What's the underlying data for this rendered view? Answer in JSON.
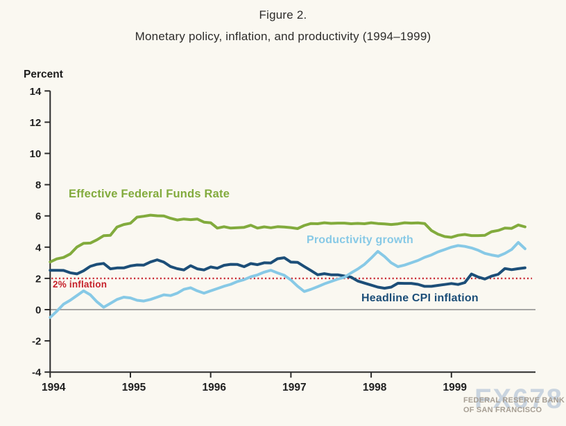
{
  "figure": {
    "title": "Figure 2.",
    "subtitle": "Monetary policy, inflation, and productivity (1994–1999)"
  },
  "chart_data": {
    "type": "line",
    "title": "Monetary policy, inflation, and productivity (1994–1999)",
    "ylabel": "Percent",
    "ylim": [
      -4,
      14
    ],
    "yticks": [
      14,
      12,
      10,
      8,
      6,
      4,
      2,
      0,
      -2,
      -4
    ],
    "xticks": [
      "1994",
      "1995",
      "1996",
      "1997",
      "1998",
      "1999"
    ],
    "x_frequency": "monthly",
    "x_start": "1994-01",
    "x_end": "1999-12",
    "grid": false,
    "legend_position": "inline-labels",
    "axis_color": "#2b2b2b",
    "zero_line_color": "#8a8a8a",
    "reference_line": {
      "value": 2,
      "label": "2% inflation",
      "color": "#c6212b",
      "style": "dotted"
    },
    "series": [
      {
        "name": "Effective Federal Funds Rate",
        "color": "#82ab3d",
        "values": [
          3.05,
          3.25,
          3.34,
          3.56,
          4.01,
          4.25,
          4.26,
          4.47,
          4.73,
          4.76,
          5.29,
          5.45,
          5.53,
          5.92,
          5.98,
          6.05,
          6.01,
          6.0,
          5.85,
          5.74,
          5.8,
          5.76,
          5.8,
          5.6,
          5.56,
          5.22,
          5.31,
          5.22,
          5.24,
          5.27,
          5.4,
          5.22,
          5.3,
          5.24,
          5.31,
          5.29,
          5.25,
          5.19,
          5.39,
          5.51,
          5.5,
          5.56,
          5.52,
          5.54,
          5.54,
          5.5,
          5.52,
          5.5,
          5.56,
          5.51,
          5.49,
          5.45,
          5.49,
          5.56,
          5.54,
          5.55,
          5.51,
          5.07,
          4.83,
          4.68,
          4.63,
          4.76,
          4.81,
          4.74,
          4.74,
          4.76,
          4.99,
          5.07,
          5.22,
          5.2,
          5.42,
          5.3
        ]
      },
      {
        "name": "Headline CPI inflation",
        "color": "#1c4e78",
        "values": [
          2.52,
          2.52,
          2.51,
          2.36,
          2.29,
          2.49,
          2.77,
          2.9,
          2.96,
          2.61,
          2.67,
          2.67,
          2.8,
          2.86,
          2.85,
          3.05,
          3.19,
          3.04,
          2.76,
          2.62,
          2.54,
          2.81,
          2.61,
          2.54,
          2.73,
          2.65,
          2.84,
          2.9,
          2.89,
          2.75,
          2.95,
          2.88,
          3.0,
          2.99,
          3.26,
          3.32,
          3.04,
          3.03,
          2.76,
          2.5,
          2.23,
          2.3,
          2.23,
          2.23,
          2.15,
          2.08,
          1.83,
          1.7,
          1.57,
          1.44,
          1.37,
          1.44,
          1.69,
          1.68,
          1.68,
          1.62,
          1.49,
          1.49,
          1.55,
          1.61,
          1.67,
          1.61,
          1.73,
          2.28,
          2.09,
          1.96,
          2.14,
          2.26,
          2.63,
          2.56,
          2.62,
          2.68
        ]
      },
      {
        "name": "Productivity growth",
        "color": "#87c9e6",
        "values": [
          -0.5,
          -0.1,
          0.35,
          0.6,
          0.9,
          1.2,
          0.95,
          0.5,
          0.15,
          0.4,
          0.65,
          0.8,
          0.75,
          0.6,
          0.55,
          0.65,
          0.8,
          0.95,
          0.9,
          1.05,
          1.3,
          1.4,
          1.2,
          1.05,
          1.2,
          1.35,
          1.5,
          1.62,
          1.8,
          1.92,
          2.1,
          2.22,
          2.4,
          2.52,
          2.35,
          2.2,
          1.9,
          1.5,
          1.16,
          1.3,
          1.47,
          1.65,
          1.8,
          1.95,
          2.07,
          2.35,
          2.6,
          2.9,
          3.3,
          3.73,
          3.4,
          3.0,
          2.75,
          2.85,
          3.0,
          3.15,
          3.35,
          3.5,
          3.7,
          3.85,
          4.0,
          4.1,
          4.05,
          3.95,
          3.8,
          3.6,
          3.5,
          3.42,
          3.6,
          3.85,
          4.3,
          3.9
        ]
      }
    ]
  },
  "watermark": {
    "logo": "FX678",
    "org_line1": "FEDERAL RESERVE BANK",
    "org_line2": "OF SAN FRANCISCO"
  }
}
